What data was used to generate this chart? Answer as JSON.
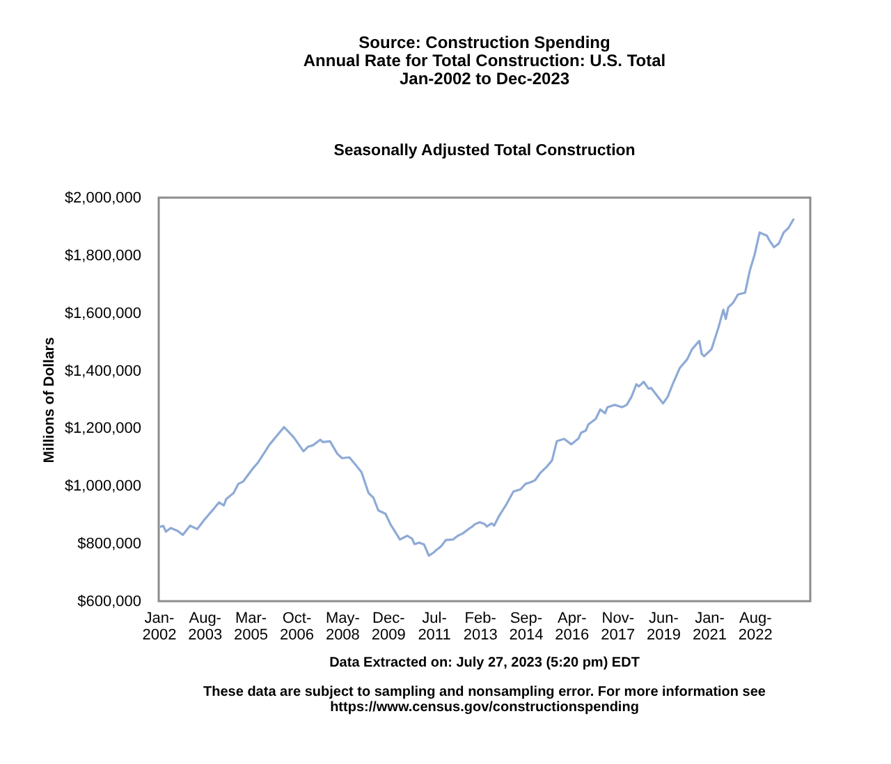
{
  "chart_data": {
    "type": "line",
    "title": "Source: Construction Spending\nAnnual Rate for Total Construction: U.S. Total\nJan-2002 to Dec-2023",
    "subtitle": "Seasonally Adjusted Total Construction",
    "ylabel": "Millions of Dollars",
    "x": [
      "2002-01",
      "2002-03",
      "2002-04",
      "2002-06",
      "2002-09",
      "2002-11",
      "2003-02",
      "2003-05",
      "2003-08",
      "2003-12",
      "2004-02",
      "2004-04",
      "2004-05",
      "2004-08",
      "2004-10",
      "2004-12",
      "2005-04",
      "2005-06",
      "2005-11",
      "2006-05",
      "2006-09",
      "2007-01",
      "2007-03",
      "2007-05",
      "2007-08",
      "2007-09",
      "2007-12",
      "2008-03",
      "2008-05",
      "2008-08",
      "2008-10",
      "2009-01",
      "2009-04",
      "2009-06",
      "2009-08",
      "2009-11",
      "2010-01",
      "2010-05",
      "2010-08",
      "2010-10",
      "2010-11",
      "2011-01",
      "2011-03",
      "2011-05",
      "2011-07",
      "2011-08",
      "2011-10",
      "2011-12",
      "2012-03",
      "2012-05",
      "2012-07",
      "2012-10",
      "2012-11",
      "2012-12",
      "2013-02",
      "2013-04",
      "2013-05",
      "2013-07",
      "2013-08",
      "2013-10",
      "2014-01",
      "2014-04",
      "2014-07",
      "2014-09",
      "2014-11",
      "2015-01",
      "2015-03",
      "2015-06",
      "2015-08",
      "2015-10",
      "2016-01",
      "2016-04",
      "2016-07",
      "2016-08",
      "2016-10",
      "2016-11",
      "2017-02",
      "2017-04",
      "2017-06",
      "2017-07",
      "2017-10",
      "2018-01",
      "2018-03",
      "2018-05",
      "2018-07",
      "2018-08",
      "2018-10",
      "2018-12",
      "2019-01",
      "2019-06",
      "2019-08",
      "2019-10",
      "2020-01",
      "2020-04",
      "2020-06",
      "2020-09",
      "2020-10",
      "2020-11",
      "2021-02",
      "2021-05",
      "2021-07",
      "2021-08",
      "2021-09",
      "2021-11",
      "2022-01",
      "2022-04",
      "2022-06",
      "2022-08",
      "2022-10",
      "2023-01",
      "2023-02",
      "2023-04",
      "2023-06",
      "2023-08",
      "2023-10",
      "2023-12"
    ],
    "series": [
      {
        "color": "#8eaad6",
        "values": [
          857000,
          861000,
          841000,
          854000,
          843000,
          830000,
          862000,
          850000,
          883000,
          922000,
          943000,
          932000,
          954000,
          975000,
          1007000,
          1015000,
          1060000,
          1079000,
          1144000,
          1204000,
          1168000,
          1120000,
          1136000,
          1141000,
          1160000,
          1152000,
          1155000,
          1112000,
          1096000,
          1099000,
          1079000,
          1048000,
          975000,
          959000,
          915000,
          903000,
          867000,
          814000,
          827000,
          817000,
          798000,
          803000,
          797000,
          758000,
          769000,
          777000,
          790000,
          812000,
          814000,
          827000,
          835000,
          854000,
          859000,
          867000,
          874000,
          868000,
          859000,
          870000,
          862000,
          895000,
          935000,
          980000,
          988000,
          1007000,
          1012000,
          1020000,
          1043000,
          1068000,
          1088000,
          1155000,
          1163000,
          1144000,
          1165000,
          1184000,
          1192000,
          1213000,
          1232000,
          1265000,
          1252000,
          1273000,
          1281000,
          1273000,
          1281000,
          1310000,
          1353000,
          1345000,
          1361000,
          1337000,
          1340000,
          1286000,
          1310000,
          1353000,
          1410000,
          1439000,
          1474000,
          1503000,
          1458000,
          1450000,
          1474000,
          1550000,
          1611000,
          1579000,
          1619000,
          1635000,
          1664000,
          1670000,
          1748000,
          1804000,
          1879000,
          1868000,
          1852000,
          1828000,
          1841000,
          1879000,
          1895000,
          1924000
        ]
      }
    ],
    "xlim": [
      "2002-01",
      "2024-07"
    ],
    "xticks": [
      {
        "value": "2002-01",
        "label": "Jan-2002"
      },
      {
        "value": "2003-08",
        "label": "Aug-2003"
      },
      {
        "value": "2005-03",
        "label": "Mar-2005"
      },
      {
        "value": "2006-10",
        "label": "Oct-2006"
      },
      {
        "value": "2008-05",
        "label": "May-2008"
      },
      {
        "value": "2009-12",
        "label": "Dec-2009"
      },
      {
        "value": "2011-07",
        "label": "Jul-2011"
      },
      {
        "value": "2013-02",
        "label": "Feb-2013"
      },
      {
        "value": "2014-09",
        "label": "Sep-2014"
      },
      {
        "value": "2016-04",
        "label": "Apr-2016"
      },
      {
        "value": "2017-11",
        "label": "Nov-2017"
      },
      {
        "value": "2019-06",
        "label": "Jun-2019"
      },
      {
        "value": "2021-01",
        "label": "Jan-2021"
      },
      {
        "value": "2022-08",
        "label": "Aug-2022"
      }
    ],
    "ylim": [
      600000,
      2000000
    ],
    "yticks": [
      {
        "value": 600000,
        "label": "$600,000"
      },
      {
        "value": 800000,
        "label": "$800,000"
      },
      {
        "value": 1000000,
        "label": "$1,000,000"
      },
      {
        "value": 1200000,
        "label": "$1,200,000"
      },
      {
        "value": 1400000,
        "label": "$1,400,000"
      },
      {
        "value": 1600000,
        "label": "$1,600,000"
      },
      {
        "value": 1800000,
        "label": "$1,800,000"
      },
      {
        "value": 2000000,
        "label": "$2,000,000"
      }
    ],
    "line_style": "solid",
    "annotations": [
      "Data Extracted on: July 27, 2023 (5:20 pm) EDT",
      "These data are subject to sampling and nonsampling error. For more information see https://www.census.gov/constructionspending"
    ]
  }
}
